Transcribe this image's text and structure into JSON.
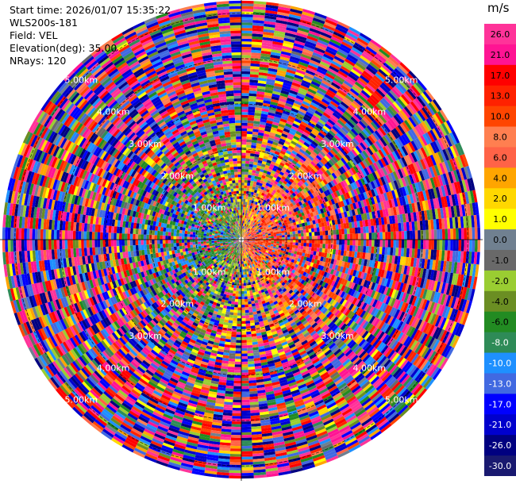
{
  "info": {
    "start_time": "Start time: 2026/01/07 15:35:22",
    "instrument": "WLS200s-181",
    "field": "Field: VEL",
    "elevation": "Elevation(deg): 35.00",
    "nrays": "NRays: 120"
  },
  "colorbar": {
    "unit": "m/s",
    "ticks": [
      "26.0",
      "21.0",
      "17.0",
      "13.0",
      "10.0",
      "8.0",
      "6.0",
      "4.0",
      "2.0",
      "1.0",
      "0.0",
      "-1.0",
      "-2.0",
      "-4.0",
      "-6.0",
      "-8.0",
      "-10.0",
      "-13.0",
      "-17.0",
      "-21.0",
      "-26.0",
      "-30.0"
    ],
    "colors": [
      "#ff3399",
      "#ff1493",
      "#ff0000",
      "#ff2200",
      "#ff4500",
      "#ff7f50",
      "#ff6347",
      "#ffa500",
      "#ffd700",
      "#ffff00",
      "#708090",
      "#696969",
      "#9acd32",
      "#6b8e23",
      "#228b22",
      "#2e8b57",
      "#1e90ff",
      "#4169e1",
      "#0000ff",
      "#0000cd",
      "#000080",
      "#191970"
    ]
  },
  "chart_data": {
    "type": "heatmap",
    "projection": "polar PPI",
    "field": "VEL",
    "units": "m/s",
    "n_rays": 120,
    "elevation_deg": 35.0,
    "range_rings_km": [
      1.0,
      2.0,
      3.0,
      4.0,
      5.0
    ],
    "range_ring_labels": [
      "1.00km",
      "2.00km",
      "3.00km",
      "4.00km",
      "5.00km"
    ],
    "color_range": [
      -30.0,
      26.0
    ]
  }
}
